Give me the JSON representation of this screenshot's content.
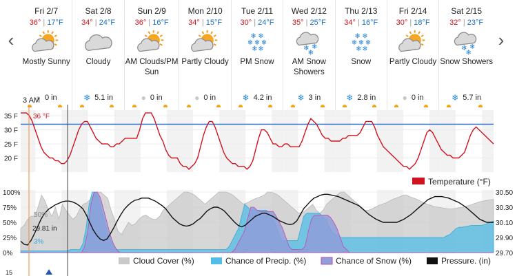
{
  "nav": {
    "prev_icon": "chevron-left-icon",
    "next_icon": "chevron-right-icon"
  },
  "current_time_label": "3 AM",
  "days": [
    {
      "name": "Fri 2/7",
      "high": "36°",
      "low": "17°F",
      "icon": "sunny-cloud-icon",
      "condition_lines": [
        "Mostly Sunny"
      ],
      "precip_icon": "drop-icon",
      "precip": "0 in"
    },
    {
      "name": "Sat 2/8",
      "high": "34°",
      "low": "24°F",
      "icon": "cloud-icon",
      "condition_lines": [
        "Cloudy"
      ],
      "precip_icon": "snowflake-icon",
      "precip": "5.1 in"
    },
    {
      "name": "Sun 2/9",
      "high": "36°",
      "low": "16°F",
      "icon": "sunny-cloud-icon",
      "condition_lines": [
        "AM Clouds/PM",
        "Sun"
      ],
      "precip_icon": "drop-icon",
      "precip": "0 in"
    },
    {
      "name": "Mon 2/10",
      "high": "34°",
      "low": "15°F",
      "icon": "sunny-cloud-icon",
      "condition_lines": [
        "Partly Cloudy"
      ],
      "precip_icon": "drop-icon",
      "precip": "0 in"
    },
    {
      "name": "Tue 2/11",
      "high": "30°",
      "low": "24°F",
      "icon": "snow-icon",
      "condition_lines": [
        "PM Snow"
      ],
      "precip_icon": "snowflake-icon",
      "precip": "4.2 in"
    },
    {
      "name": "Wed 2/12",
      "high": "35°",
      "low": "25°F",
      "icon": "cloud-snow-icon",
      "condition_lines": [
        "AM Snow",
        "Showers"
      ],
      "precip_icon": "snowflake-icon",
      "precip": "3 in"
    },
    {
      "name": "Thu 2/13",
      "high": "34°",
      "low": "16°F",
      "icon": "snow-icon",
      "condition_lines": [
        "Snow"
      ],
      "precip_icon": "snowflake-icon",
      "precip": "2.8 in"
    },
    {
      "name": "Fri 2/14",
      "high": "30°",
      "low": "18°F",
      "icon": "sunny-cloud-icon",
      "condition_lines": [
        "Partly Cloudy"
      ],
      "precip_icon": "drop-icon",
      "precip": "0 in"
    },
    {
      "name": "Sat 2/15",
      "high": "32°",
      "low": "23°F",
      "icon": "cloud-snow-icon",
      "condition_lines": [
        "Snow Showers"
      ],
      "precip_icon": "snowflake-icon",
      "precip": "5.7 in"
    }
  ],
  "colors": {
    "temperature": "#d0121e",
    "freezing_line": "#2f6fd0",
    "cloud": "#c9c9c9",
    "precip": "#52bde6",
    "snow": "#8e9ed9",
    "snow_border": "#c04ab0",
    "pressure": "#111111",
    "current_marker": "#f08a3c",
    "night_band": "#f2f2f2"
  },
  "chart_data": [
    {
      "type": "line",
      "title": "",
      "y_ticks": [
        "35 F",
        "30 F",
        "25 F",
        "20 F"
      ],
      "ylim": [
        15,
        37
      ],
      "freezing_value": 32,
      "current_label": "36 °F",
      "series": [
        {
          "name": "Temperature (°F)",
          "values": [
            36,
            36,
            36,
            35,
            33,
            30,
            27,
            24,
            22,
            21,
            20,
            20,
            19,
            19,
            18,
            18,
            19,
            21,
            24,
            27,
            30,
            32,
            33,
            33,
            31,
            29,
            27,
            26,
            25,
            25,
            25,
            24,
            24,
            25,
            25,
            26,
            27,
            27,
            27,
            27,
            27,
            30,
            34,
            36,
            36,
            36,
            34,
            31,
            28,
            26,
            23,
            21,
            20,
            20,
            20,
            18,
            17,
            17,
            16,
            17,
            18,
            20,
            24,
            28,
            31,
            33,
            33,
            31,
            28,
            25,
            22,
            20,
            19,
            18,
            18,
            17,
            17,
            17,
            16,
            17,
            19,
            23,
            27,
            30,
            30,
            29,
            27,
            25,
            25,
            24,
            24,
            25,
            25,
            24,
            24,
            24,
            24,
            26,
            29,
            32,
            34,
            33,
            32,
            30,
            28,
            27,
            27,
            26,
            26,
            26,
            26,
            27,
            27,
            28,
            28,
            28,
            28,
            29,
            31,
            33,
            33,
            33,
            31,
            28,
            26,
            24,
            23,
            22,
            21,
            20,
            19,
            18,
            17,
            17,
            16,
            17,
            18,
            20,
            23,
            26,
            29,
            30,
            29,
            27,
            25,
            23,
            22,
            21,
            21,
            20,
            20,
            20,
            21,
            22,
            25,
            28,
            30,
            31,
            30,
            29,
            28,
            27,
            26,
            25
          ]
        }
      ]
    },
    {
      "type": "area",
      "title": "",
      "y_ticks_left": [
        "100%",
        "75%",
        "50%",
        "25%",
        "0%"
      ],
      "y_ticks_right": [
        "30.50",
        "30.30",
        "30.10",
        "29.90",
        "29.70"
      ],
      "ylim_left": [
        0,
        100
      ],
      "ylim_right": [
        29.7,
        30.5
      ],
      "current_values": {
        "cloud_cover": "50%",
        "pressure": "29.81 in",
        "precip": "3%"
      },
      "series": [
        {
          "name": "Cloud Cover (%)",
          "values": [
            40,
            45,
            55,
            60,
            60,
            75,
            95,
            85,
            70,
            60,
            75,
            55,
            80,
            70,
            62,
            55,
            60,
            72,
            80,
            82,
            88,
            95,
            100,
            100,
            95,
            90,
            70,
            55,
            35,
            30,
            40,
            50,
            45,
            48,
            55,
            60,
            62,
            58,
            55,
            55,
            60,
            70,
            75,
            80,
            85,
            90,
            95,
            100,
            100,
            98,
            95,
            90,
            85,
            80,
            85,
            90,
            95,
            100,
            100,
            100,
            98,
            95,
            90,
            85,
            80,
            82,
            85,
            88,
            90,
            92,
            95,
            100,
            100,
            98,
            95,
            90,
            85,
            80,
            75,
            70,
            65,
            65,
            70,
            75,
            80,
            70,
            65,
            70,
            80,
            85,
            90,
            95,
            100,
            100,
            95,
            90,
            85,
            80,
            75,
            70,
            70,
            72,
            75,
            78,
            80,
            82,
            85,
            88,
            90,
            92,
            95,
            95,
            92,
            90,
            88,
            85,
            82,
            80,
            78,
            76,
            75,
            74,
            73,
            72,
            72,
            73,
            74,
            75,
            76,
            78,
            80,
            82,
            84,
            85,
            86,
            87,
            88
          ]
        },
        {
          "name": "Chance of Precip. (%)",
          "values": [
            3,
            3,
            3,
            3,
            3,
            3,
            3,
            3,
            3,
            3,
            3,
            3,
            3,
            3,
            3,
            3,
            5,
            5,
            5,
            5,
            15,
            40,
            80,
            100,
            100,
            90,
            70,
            50,
            30,
            20,
            10,
            5,
            5,
            5,
            5,
            5,
            5,
            5,
            5,
            5,
            5,
            5,
            5,
            5,
            5,
            5,
            5,
            5,
            5,
            5,
            5,
            5,
            5,
            5,
            5,
            5,
            5,
            5,
            5,
            5,
            5,
            5,
            5,
            5,
            5,
            5,
            5,
            10,
            20,
            30,
            40,
            60,
            80,
            75,
            70,
            70,
            70,
            70,
            70,
            70,
            65,
            55,
            45,
            30,
            20,
            20,
            20,
            20,
            20,
            20,
            40,
            60,
            65,
            65,
            65,
            65,
            65,
            60,
            55,
            45,
            35,
            30,
            28,
            25,
            25,
            25,
            25,
            25,
            25,
            25,
            25,
            25,
            25,
            25,
            25,
            25,
            25,
            25,
            25,
            25,
            25,
            25,
            25,
            25,
            25,
            25,
            25,
            25,
            25,
            25,
            25,
            25,
            25,
            25,
            25,
            25,
            25,
            28,
            30,
            35,
            40,
            42,
            42,
            43,
            44,
            45,
            45,
            45,
            45,
            46,
            48,
            50,
            52
          ]
        },
        {
          "name": "Chance of Snow (%)",
          "values": [
            0,
            0,
            0,
            0,
            0,
            0,
            0,
            0,
            0,
            0,
            0,
            0,
            0,
            0,
            0,
            0,
            0,
            0,
            0,
            0,
            10,
            35,
            80,
            100,
            100,
            90,
            70,
            50,
            30,
            15,
            5,
            0,
            0,
            0,
            0,
            0,
            0,
            0,
            0,
            0,
            0,
            0,
            0,
            0,
            0,
            0,
            0,
            0,
            0,
            0,
            0,
            0,
            0,
            0,
            0,
            0,
            0,
            0,
            0,
            0,
            0,
            0,
            0,
            0,
            0,
            0,
            0,
            5,
            15,
            25,
            35,
            55,
            75,
            75,
            70,
            68,
            68,
            68,
            68,
            68,
            60,
            50,
            40,
            25,
            10,
            5,
            5,
            5,
            5,
            10,
            35,
            55,
            62,
            62,
            62,
            62,
            62,
            58,
            50,
            40,
            25,
            10,
            5,
            0,
            0,
            0,
            0,
            0,
            0,
            0,
            0,
            0,
            0,
            0,
            0,
            0,
            0,
            0,
            0,
            0,
            0,
            0,
            0,
            0,
            0,
            0,
            0,
            0,
            0,
            0,
            0,
            0,
            0,
            0,
            0,
            0,
            0,
            0,
            0,
            0,
            0,
            0,
            0,
            0,
            0,
            0,
            0,
            0,
            0
          ]
        },
        {
          "name": "Pressure. (in)",
          "values": [
            29.85,
            29.81,
            29.8,
            29.86,
            29.95,
            30.05,
            30.15,
            30.22,
            30.27,
            30.3,
            30.33,
            30.35,
            30.37,
            30.38,
            30.38,
            30.37,
            30.35,
            30.32,
            30.28,
            30.2,
            30.1,
            30.0,
            29.93,
            29.88,
            29.86,
            29.88,
            29.95,
            30.03,
            30.12,
            30.2,
            30.27,
            30.32,
            30.36,
            30.39,
            30.4,
            30.42,
            30.42,
            30.42,
            30.4,
            30.38,
            30.35,
            30.32,
            30.28,
            30.22,
            30.16,
            30.12,
            30.08,
            30.06,
            30.05,
            30.06,
            30.08,
            30.12,
            30.15,
            30.2,
            30.25,
            30.28,
            30.3,
            30.3,
            30.28,
            30.25,
            30.2,
            30.15,
            30.1,
            30.06,
            30.04,
            30.06,
            30.1,
            30.14,
            30.18,
            30.2,
            30.22,
            30.22,
            30.2,
            30.18,
            30.15,
            30.12,
            30.1,
            30.08,
            30.07,
            30.08,
            30.12,
            30.2,
            30.28,
            30.33,
            30.38,
            30.42,
            30.44,
            30.46,
            30.47,
            30.47,
            30.46,
            30.45,
            30.44,
            30.42,
            30.4,
            30.38,
            30.36,
            30.34,
            30.32,
            30.28,
            30.24,
            30.2,
            30.17,
            30.14,
            30.12,
            30.1,
            30.1,
            30.1,
            30.1,
            30.1,
            30.12,
            30.14,
            30.17,
            30.2,
            30.24,
            30.28,
            30.32,
            30.36,
            30.4,
            30.42,
            30.44,
            30.44,
            30.44,
            30.43,
            30.42,
            30.4,
            30.38,
            30.36,
            30.33,
            30.3,
            30.26,
            30.22,
            30.18,
            30.14,
            30.12,
            30.1,
            30.1,
            30.1
          ]
        }
      ]
    }
  ],
  "legend": {
    "temperature": "Temperature (°F)",
    "cloud": "Cloud Cover (%)",
    "precip": "Chance of Precip. (%)",
    "snow": "Chance of Snow (%)",
    "pressure": "Pressure. (in)"
  },
  "bottom_axis_tick": "15"
}
